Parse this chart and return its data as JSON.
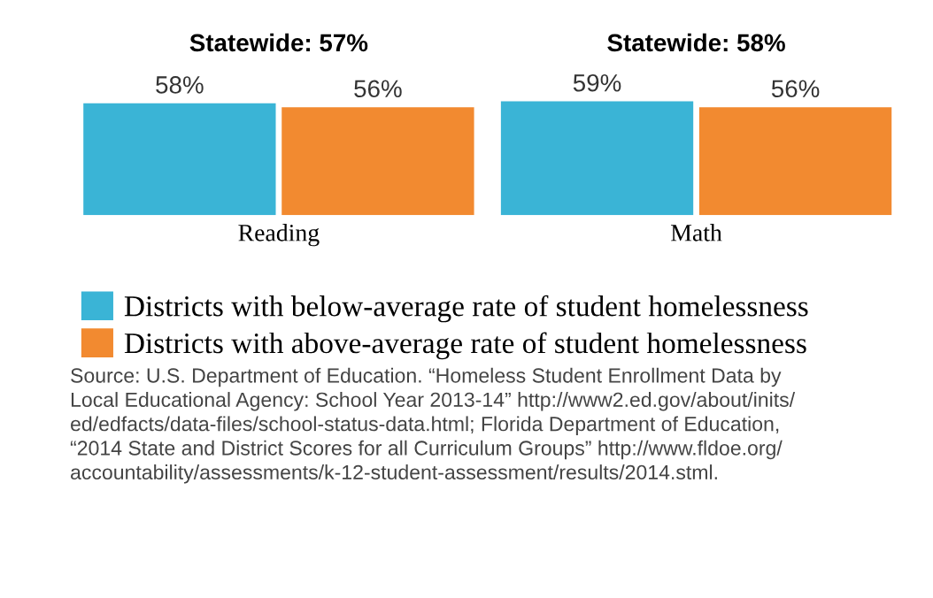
{
  "chart_data": {
    "type": "bar",
    "categories": [
      "Reading",
      "Math"
    ],
    "tick_labels": "x",
    "legend": "bottom",
    "series": [
      {
        "name": "Districts with below-average rate of student homelessness",
        "color": "#3ab4d6",
        "values": [
          58,
          59
        ],
        "value_labels": [
          "58%",
          "59%"
        ]
      },
      {
        "name": "Districts with above-average rate of student homelessness",
        "color": "#f28a30",
        "values": [
          56,
          56
        ],
        "value_labels": [
          "56%",
          "56%"
        ]
      }
    ],
    "annotations": [
      "Statewide: 57%",
      "Statewide: 58%",
      "Source: U.S. Department of Education. “Homeless Student Enrollment Data by\nLocal Educational Agency: School Year 2013-14” http://www2.ed.gov/about/inits/\ned/edfacts/data-files/school-status-data.html; Florida Department of Education,\n“2014 State and District Scores for all Curriculum Groups” http://www.fldoe.org/\naccountability/assessments/k-12-student-assessment/results/2014.stml."
    ]
  }
}
